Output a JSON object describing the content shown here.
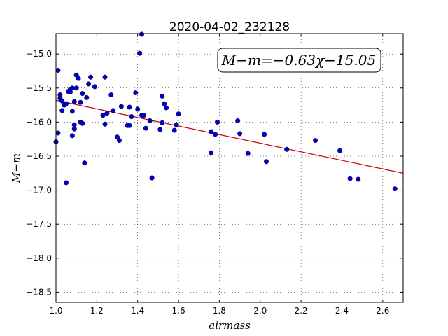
{
  "chart_data": {
    "type": "scatter",
    "title": "2020-04-02_232128",
    "xlabel": "airmass",
    "ylabel": "M−m",
    "xlim": [
      1.0,
      2.7
    ],
    "ylim": [
      -18.65,
      -14.7
    ],
    "y_inverted": true,
    "grid": true,
    "x_ticks": [
      1.0,
      1.2,
      1.4,
      1.6,
      1.8,
      2.0,
      2.2,
      2.4,
      2.6
    ],
    "x_tick_labels": [
      "1.0",
      "1.2",
      "1.4",
      "1.6",
      "1.8",
      "2.0",
      "2.2",
      "2.4",
      "2.6"
    ],
    "y_ticks": [
      -15.0,
      -15.5,
      -16.0,
      -16.5,
      -17.0,
      -17.5,
      -18.0,
      -18.5
    ],
    "y_tick_labels": [
      "−15.0",
      "−15.5",
      "−16.0",
      "−16.5",
      "−17.0",
      "−17.5",
      "−18.0",
      "−18.5"
    ],
    "annotation": "M−m=−0.63χ−15.05",
    "annotation_position": "top-right",
    "series": [
      {
        "kind": "scatter",
        "color": "#0000cc",
        "points": [
          [
            1.0,
            -16.29
          ],
          [
            1.01,
            -16.16
          ],
          [
            1.01,
            -15.24
          ],
          [
            1.02,
            -15.6
          ],
          [
            1.02,
            -15.65
          ],
          [
            1.03,
            -15.69
          ],
          [
            1.03,
            -15.83
          ],
          [
            1.04,
            -15.75
          ],
          [
            1.05,
            -15.73
          ],
          [
            1.05,
            -16.89
          ],
          [
            1.06,
            -15.55
          ],
          [
            1.07,
            -15.52
          ],
          [
            1.07,
            -15.56
          ],
          [
            1.08,
            -15.84
          ],
          [
            1.08,
            -16.2
          ],
          [
            1.08,
            -15.5
          ],
          [
            1.09,
            -16.04
          ],
          [
            1.09,
            -16.1
          ],
          [
            1.09,
            -15.7
          ],
          [
            1.1,
            -15.31
          ],
          [
            1.1,
            -15.5
          ],
          [
            1.11,
            -15.36
          ],
          [
            1.12,
            -15.71
          ],
          [
            1.12,
            -16.0
          ],
          [
            1.13,
            -16.02
          ],
          [
            1.13,
            -15.58
          ],
          [
            1.14,
            -16.6
          ],
          [
            1.15,
            -15.64
          ],
          [
            1.16,
            -15.44
          ],
          [
            1.17,
            -15.34
          ],
          [
            1.19,
            -15.48
          ],
          [
            1.23,
            -15.9
          ],
          [
            1.24,
            -16.03
          ],
          [
            1.24,
            -15.34
          ],
          [
            1.25,
            -15.87
          ],
          [
            1.27,
            -15.6
          ],
          [
            1.28,
            -15.83
          ],
          [
            1.3,
            -16.22
          ],
          [
            1.31,
            -16.27
          ],
          [
            1.32,
            -15.77
          ],
          [
            1.35,
            -16.05
          ],
          [
            1.36,
            -15.78
          ],
          [
            1.36,
            -16.05
          ],
          [
            1.37,
            -15.92
          ],
          [
            1.39,
            -15.57
          ],
          [
            1.4,
            -15.81
          ],
          [
            1.41,
            -14.99
          ],
          [
            1.42,
            -14.71
          ],
          [
            1.42,
            -15.9
          ],
          [
            1.43,
            -15.9
          ],
          [
            1.44,
            -16.09
          ],
          [
            1.46,
            -15.98
          ],
          [
            1.47,
            -16.82
          ],
          [
            1.51,
            -16.11
          ],
          [
            1.52,
            -15.62
          ],
          [
            1.52,
            -16.01
          ],
          [
            1.53,
            -15.73
          ],
          [
            1.54,
            -15.79
          ],
          [
            1.58,
            -16.12
          ],
          [
            1.59,
            -16.04
          ],
          [
            1.6,
            -15.88
          ],
          [
            1.76,
            -16.45
          ],
          [
            1.76,
            -16.14
          ],
          [
            1.78,
            -16.18
          ],
          [
            1.79,
            -16.0
          ],
          [
            1.89,
            -15.98
          ],
          [
            1.9,
            -16.17
          ],
          [
            1.94,
            -16.46
          ],
          [
            2.02,
            -16.18
          ],
          [
            2.03,
            -16.58
          ],
          [
            2.13,
            -16.4
          ],
          [
            2.27,
            -16.27
          ],
          [
            2.39,
            -16.42
          ],
          [
            2.44,
            -16.83
          ],
          [
            2.48,
            -16.84
          ],
          [
            2.66,
            -16.98
          ]
        ]
      },
      {
        "kind": "line",
        "color": "#cc0000",
        "x": [
          1.0,
          2.7
        ],
        "y": [
          -15.68,
          -16.751
        ]
      }
    ]
  }
}
